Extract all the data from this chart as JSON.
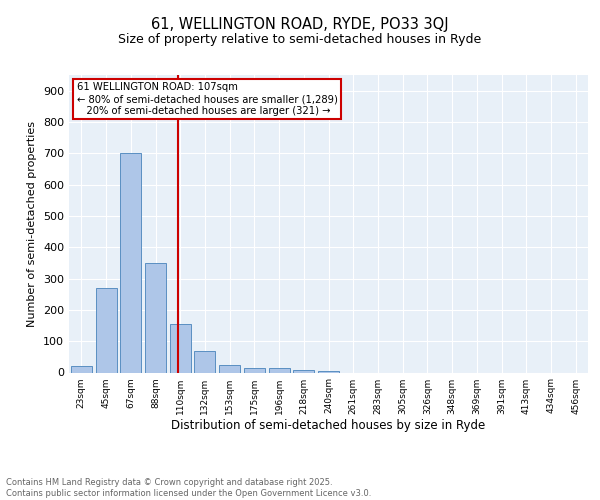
{
  "title1": "61, WELLINGTON ROAD, RYDE, PO33 3QJ",
  "title2": "Size of property relative to semi-detached houses in Ryde",
  "xlabel": "Distribution of semi-detached houses by size in Ryde",
  "ylabel": "Number of semi-detached properties",
  "bin_labels": [
    "23sqm",
    "45sqm",
    "67sqm",
    "88sqm",
    "110sqm",
    "132sqm",
    "153sqm",
    "175sqm",
    "196sqm",
    "218sqm",
    "240sqm",
    "261sqm",
    "283sqm",
    "305sqm",
    "326sqm",
    "348sqm",
    "369sqm",
    "391sqm",
    "413sqm",
    "434sqm",
    "456sqm"
  ],
  "bar_values": [
    22,
    270,
    700,
    350,
    155,
    68,
    25,
    13,
    13,
    8,
    5,
    0,
    0,
    0,
    0,
    0,
    0,
    0,
    0,
    0,
    0
  ],
  "bar_color": "#aec6e8",
  "bar_edgecolor": "#5a8fc2",
  "vline_color": "#cc0000",
  "annotation_text": "61 WELLINGTON ROAD: 107sqm\n← 80% of semi-detached houses are smaller (1,289)\n   20% of semi-detached houses are larger (321) →",
  "annotation_box_color": "#cc0000",
  "footer": "Contains HM Land Registry data © Crown copyright and database right 2025.\nContains public sector information licensed under the Open Government Licence v3.0.",
  "background_color": "#e8f0f8",
  "ylim": [
    0,
    950
  ],
  "yticks": [
    0,
    100,
    200,
    300,
    400,
    500,
    600,
    700,
    800,
    900
  ]
}
